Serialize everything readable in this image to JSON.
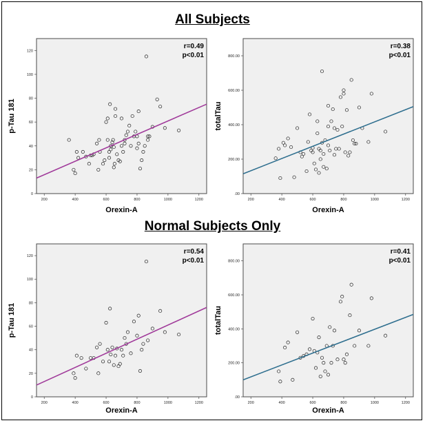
{
  "sections": [
    {
      "title": "All Subjects"
    },
    {
      "title": "Normal Subjects Only"
    }
  ],
  "colors": {
    "ptau_line": "#a03a9a",
    "total_line": "#2f6f8f",
    "plot_bg": "#f0f0f0"
  },
  "chart_data": [
    {
      "type": "scatter",
      "section": "All Subjects",
      "xlabel": "Orexin-A",
      "ylabel": "p-Tau 181",
      "xlim": [
        150,
        1250
      ],
      "ylim": [
        0,
        130
      ],
      "xticks": [
        200,
        400,
        600,
        800,
        1000,
        1200
      ],
      "yticks": [
        0,
        20,
        40,
        60,
        80,
        100,
        120
      ],
      "xtick_labels": [
        "200",
        "400",
        "600",
        "800",
        "1000",
        "1200"
      ],
      "ytick_labels": [
        "0",
        "20",
        "40",
        "60",
        "80",
        "100",
        "120"
      ],
      "annotation": {
        "r": "r=0.49",
        "p": "p<0.01"
      },
      "fit_line": {
        "x": [
          150,
          1250
        ],
        "y": [
          13,
          75
        ]
      },
      "points": {
        "x": [
          360,
          390,
          400,
          410,
          420,
          450,
          470,
          490,
          500,
          510,
          520,
          540,
          550,
          555,
          560,
          580,
          590,
          600,
          610,
          610,
          620,
          620,
          625,
          630,
          640,
          645,
          650,
          655,
          660,
          660,
          670,
          680,
          690,
          700,
          700,
          710,
          720,
          720,
          730,
          740,
          750,
          760,
          770,
          780,
          790,
          800,
          800,
          810,
          810,
          820,
          830,
          840,
          850,
          860,
          870,
          870,
          880,
          900,
          930,
          950,
          980,
          1070,
          630,
          650
        ],
        "y": [
          45,
          20,
          17,
          35,
          30,
          35,
          31,
          25,
          32,
          32,
          33,
          42,
          20,
          45,
          35,
          25,
          28,
          60,
          63,
          45,
          30,
          35,
          75,
          40,
          43,
          45,
          22,
          25,
          71,
          65,
          33,
          28,
          27,
          40,
          63,
          35,
          42,
          45,
          49,
          52,
          57,
          40,
          65,
          48,
          52,
          38,
          48,
          69,
          42,
          21,
          28,
          35,
          40,
          115,
          45,
          48,
          48,
          56,
          79,
          73,
          55,
          53,
          37,
          39
        ]
      }
    },
    {
      "type": "scatter",
      "section": "All Subjects",
      "xlabel": "Orexin-A",
      "ylabel": "totalTau",
      "xlim": [
        150,
        1250
      ],
      "ylim": [
        0,
        900
      ],
      "xticks": [
        200,
        400,
        600,
        800,
        1000,
        1200
      ],
      "yticks": [
        0,
        200,
        400,
        600,
        800
      ],
      "xtick_labels": [
        "200",
        "400",
        "600",
        "800",
        "1000",
        "1200"
      ],
      "ytick_labels": [
        ".00",
        "200.00",
        "400.00",
        "600.00",
        "800.00"
      ],
      "annotation": {
        "r": "r=0.38",
        "p": "p<0.01"
      },
      "fit_line": {
        "x": [
          150,
          1250
        ],
        "y": [
          115,
          505
        ]
      },
      "points": {
        "x": [
          360,
          380,
          390,
          410,
          420,
          440,
          460,
          480,
          500,
          520,
          530,
          540,
          560,
          570,
          580,
          590,
          600,
          610,
          620,
          630,
          630,
          640,
          640,
          650,
          650,
          660,
          660,
          670,
          670,
          680,
          690,
          700,
          700,
          710,
          720,
          730,
          740,
          740,
          750,
          760,
          770,
          780,
          790,
          800,
          800,
          810,
          820,
          830,
          840,
          850,
          860,
          870,
          880,
          900,
          920,
          960,
          980,
          1070,
          600,
          700
        ],
        "y": [
          205,
          260,
          90,
          295,
          280,
          320,
          270,
          95,
          380,
          240,
          215,
          230,
          130,
          300,
          460,
          250,
          265,
          175,
          140,
          350,
          420,
          120,
          260,
          250,
          200,
          295,
          710,
          230,
          155,
          310,
          145,
          280,
          510,
          250,
          420,
          490,
          380,
          225,
          260,
          370,
          260,
          560,
          390,
          580,
          600,
          240,
          485,
          220,
          240,
          660,
          310,
          290,
          290,
          500,
          380,
          300,
          580,
          360,
          240,
          390
        ]
      }
    },
    {
      "type": "scatter",
      "section": "Normal Subjects Only",
      "xlabel": "Orexin-A",
      "ylabel": "p-Tau 181",
      "xlim": [
        150,
        1250
      ],
      "ylim": [
        0,
        130
      ],
      "xticks": [
        200,
        400,
        600,
        800,
        1000,
        1200
      ],
      "yticks": [
        0,
        20,
        40,
        60,
        80,
        100,
        120
      ],
      "xtick_labels": [
        "200",
        "400",
        "600",
        "800",
        "1000",
        "1200"
      ],
      "ytick_labels": [
        "0",
        "20",
        "40",
        "60",
        "80",
        "100",
        "120"
      ],
      "annotation": {
        "r": "r=0.54",
        "p": "p<0.01"
      },
      "fit_line": {
        "x": [
          150,
          1250
        ],
        "y": [
          10,
          76
        ]
      },
      "points": {
        "x": [
          390,
          400,
          410,
          440,
          470,
          500,
          520,
          540,
          550,
          560,
          580,
          600,
          610,
          620,
          625,
          640,
          650,
          660,
          670,
          680,
          690,
          700,
          710,
          720,
          730,
          740,
          760,
          780,
          800,
          810,
          820,
          830,
          840,
          860,
          870,
          900,
          950,
          980,
          1070,
          630
        ],
        "y": [
          20,
          16,
          35,
          33,
          24,
          33,
          33,
          42,
          20,
          45,
          30,
          63,
          40,
          30,
          75,
          42,
          27,
          35,
          41,
          26,
          28,
          40,
          35,
          50,
          45,
          55,
          37,
          64,
          52,
          69,
          22,
          40,
          45,
          115,
          48,
          58,
          73,
          55,
          53,
          36
        ]
      }
    },
    {
      "type": "scatter",
      "section": "Normal Subjects Only",
      "xlabel": "Orexin-A",
      "ylabel": "totalTau",
      "xlim": [
        150,
        1250
      ],
      "ylim": [
        0,
        900
      ],
      "xticks": [
        200,
        400,
        600,
        800,
        1000,
        1200
      ],
      "yticks": [
        0,
        200,
        400,
        600,
        800
      ],
      "xtick_labels": [
        "200",
        "400",
        "600",
        "800",
        "1000",
        "1200"
      ],
      "ytick_labels": [
        ".00",
        "200.00",
        "400.00",
        "600.00",
        "800.00"
      ],
      "annotation": {
        "r": "r=0.41",
        "p": "p<0.01"
      },
      "fit_line": {
        "x": [
          150,
          1250
        ],
        "y": [
          100,
          485
        ]
      },
      "points": {
        "x": [
          380,
          390,
          420,
          440,
          470,
          500,
          520,
          540,
          560,
          580,
          600,
          610,
          620,
          640,
          650,
          660,
          670,
          680,
          690,
          700,
          710,
          720,
          740,
          760,
          780,
          790,
          800,
          810,
          820,
          840,
          850,
          870,
          900,
          960,
          980,
          1070,
          630,
          730
        ],
        "y": [
          150,
          90,
          290,
          320,
          100,
          380,
          230,
          240,
          250,
          280,
          460,
          270,
          170,
          350,
          120,
          230,
          200,
          150,
          300,
          130,
          410,
          200,
          390,
          220,
          560,
          590,
          220,
          200,
          250,
          480,
          660,
          300,
          390,
          300,
          580,
          360,
          260,
          300
        ]
      }
    }
  ]
}
